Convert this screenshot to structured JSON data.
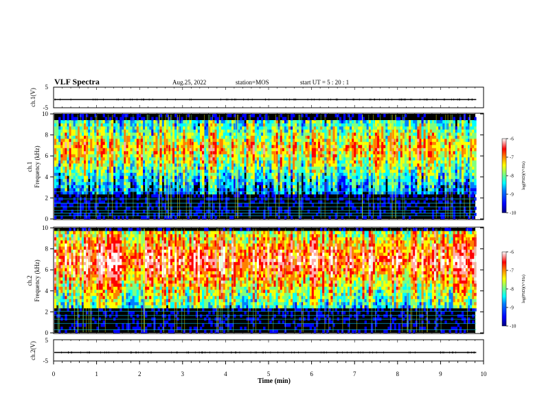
{
  "header": {
    "title": "VLF Spectra",
    "date": "Aug.25, 2022",
    "station": "station=MOS",
    "start_ut": "start UT =  5 : 20 : 1"
  },
  "chart_data": [
    {
      "type": "line",
      "panel": "ch1-waveform",
      "ylabel": "ch.1(V)",
      "yticks": [
        "5",
        "-5"
      ],
      "ylim": [
        -5,
        5
      ],
      "trace_level": -1.0
    },
    {
      "type": "heatmap",
      "panel": "ch1-spectrogram",
      "ylabel_top": "ch.1",
      "ylabel": "Frequency (kHz)",
      "yticks": [
        "0",
        "2",
        "4",
        "6",
        "8",
        "10"
      ],
      "ylim": [
        0,
        10
      ],
      "xlim": [
        0,
        9.83
      ],
      "colorbar": {
        "label": "log(PSD)(V²/Hz)",
        "ticks": [
          "-6",
          "-7",
          "-8",
          "-9",
          "-10"
        ],
        "range": [
          -10,
          -6
        ]
      },
      "noise_lines_khz": [
        0.3,
        0.55,
        0.8,
        1.15,
        1.5,
        1.9,
        2.6
      ],
      "band_khz": [
        2.3,
        9.4
      ]
    },
    {
      "type": "heatmap",
      "panel": "ch2-spectrogram",
      "ylabel_top": "ch.2",
      "ylabel": "Frequency (kHz)",
      "yticks": [
        "0",
        "2",
        "4",
        "6",
        "8",
        "10"
      ],
      "ylim": [
        0,
        10
      ],
      "xlim": [
        0,
        9.83
      ],
      "colorbar": {
        "label": "log(PSD)(V²/Hz)",
        "ticks": [
          "-6",
          "-7",
          "-8",
          "-9",
          "-10"
        ],
        "range": [
          -10,
          -6
        ]
      },
      "noise_lines_khz": [
        0.3,
        0.9,
        1.3,
        1.65,
        2.05
      ],
      "band_khz": [
        2.5,
        9.6
      ]
    },
    {
      "type": "line",
      "panel": "ch2-waveform",
      "ylabel": "ch.2(V)",
      "yticks": [
        "5",
        "-5"
      ],
      "ylim": [
        -5,
        5
      ],
      "trace_level": -1.0
    }
  ],
  "xaxis": {
    "label": "Time (min)",
    "ticks": [
      "0",
      "1",
      "2",
      "3",
      "4",
      "5",
      "6",
      "7",
      "8",
      "9",
      "10"
    ],
    "range": [
      0,
      10
    ]
  },
  "colors": {
    "jet": [
      "#00007f",
      "#0000ff",
      "#007fff",
      "#00ffff",
      "#7fff7f",
      "#ffff00",
      "#ff7f00",
      "#ff0000",
      "#ffaaaa",
      "#ffffff"
    ]
  }
}
